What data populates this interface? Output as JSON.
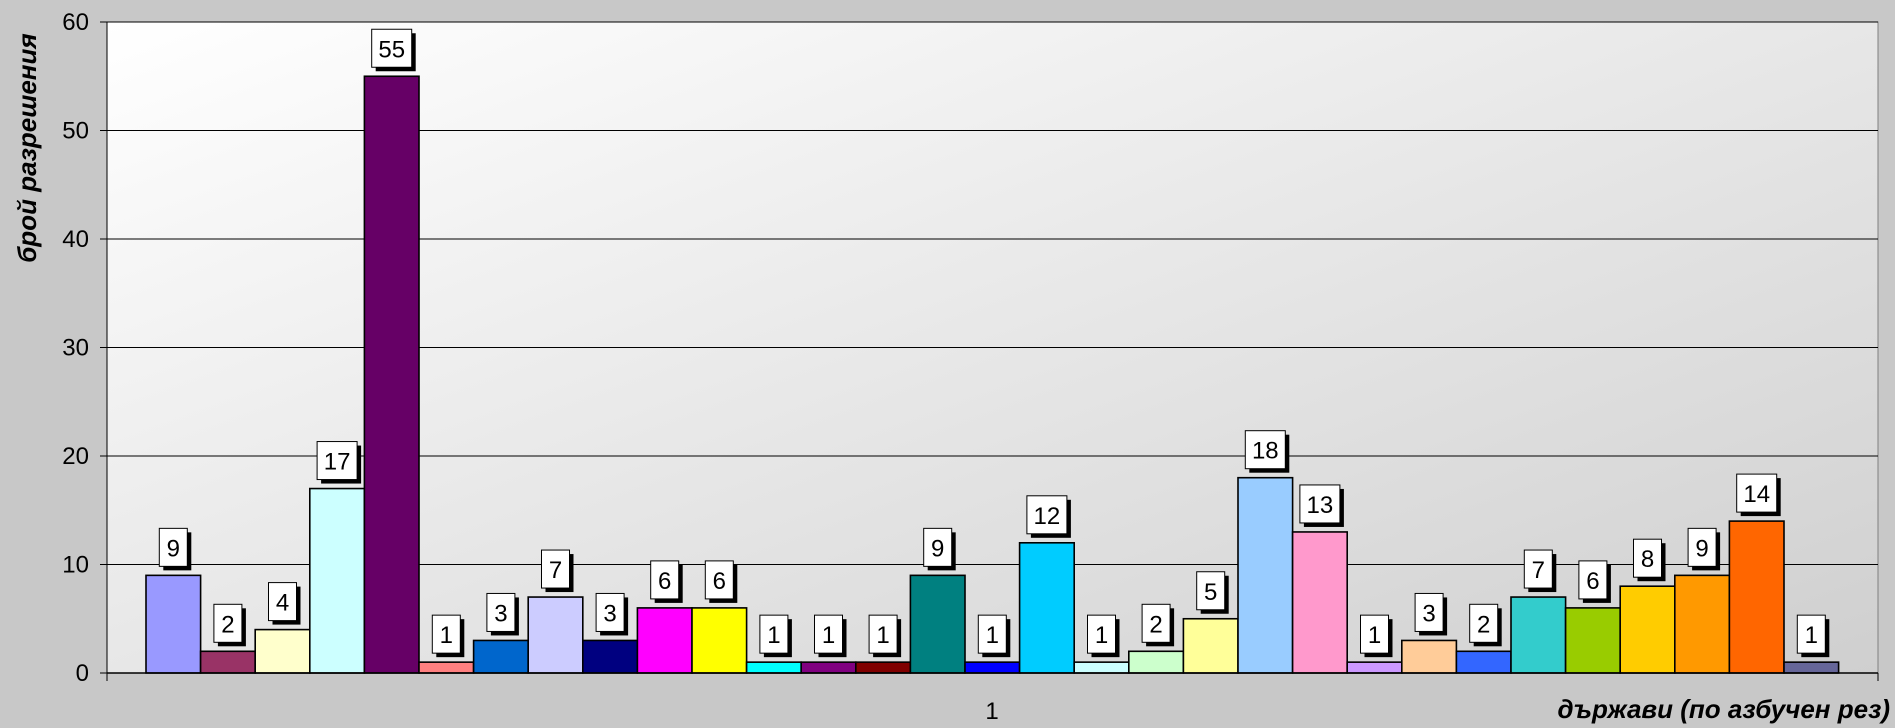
{
  "chart_data": {
    "type": "bar",
    "title": "",
    "xlabel": "държави (по азбучен рез)",
    "ylabel": "брой разрешения",
    "categories": [
      "1"
    ],
    "ylim": [
      0,
      60
    ],
    "yticks": [
      "0",
      "10",
      "20",
      "30",
      "40",
      "50",
      "60"
    ],
    "grid": true,
    "legend": "none",
    "series": [
      {
        "value": 9,
        "label": "9",
        "color": "#9999ff"
      },
      {
        "value": 2,
        "label": "2",
        "color": "#993366"
      },
      {
        "value": 4,
        "label": "4",
        "color": "#ffffcc"
      },
      {
        "value": 17,
        "label": "17",
        "color": "#ccffff"
      },
      {
        "value": 55,
        "label": "55",
        "color": "#660066"
      },
      {
        "value": 1,
        "label": "1",
        "color": "#ff8080"
      },
      {
        "value": 3,
        "label": "3",
        "color": "#0066cc"
      },
      {
        "value": 7,
        "label": "7",
        "color": "#ccccff"
      },
      {
        "value": 3,
        "label": "3",
        "color": "#000080"
      },
      {
        "value": 6,
        "label": "6",
        "color": "#ff00ff"
      },
      {
        "value": 6,
        "label": "6",
        "color": "#ffff00"
      },
      {
        "value": 1,
        "label": "1",
        "color": "#00ffff"
      },
      {
        "value": 1,
        "label": "1",
        "color": "#800080"
      },
      {
        "value": 1,
        "label": "1",
        "color": "#800000"
      },
      {
        "value": 9,
        "label": "9",
        "color": "#008080"
      },
      {
        "value": 1,
        "label": "1",
        "color": "#0000ff"
      },
      {
        "value": 12,
        "label": "12",
        "color": "#00ccff"
      },
      {
        "value": 1,
        "label": "1",
        "color": "#ccffff"
      },
      {
        "value": 2,
        "label": "2",
        "color": "#ccffcc"
      },
      {
        "value": 5,
        "label": "5",
        "color": "#ffff99"
      },
      {
        "value": 18,
        "label": "18",
        "color": "#99ccff"
      },
      {
        "value": 13,
        "label": "13",
        "color": "#ff99cc"
      },
      {
        "value": 1,
        "label": "1",
        "color": "#cc99ff"
      },
      {
        "value": 3,
        "label": "3",
        "color": "#ffcc99"
      },
      {
        "value": 2,
        "label": "2",
        "color": "#3366ff"
      },
      {
        "value": 7,
        "label": "7",
        "color": "#33cccc"
      },
      {
        "value": 6,
        "label": "6",
        "color": "#99cc00"
      },
      {
        "value": 8,
        "label": "8",
        "color": "#ffcc00"
      },
      {
        "value": 9,
        "label": "9",
        "color": "#ff9900"
      },
      {
        "value": 14,
        "label": "14",
        "color": "#ff6600"
      },
      {
        "value": 1,
        "label": "1",
        "color": "#666699"
      }
    ]
  }
}
